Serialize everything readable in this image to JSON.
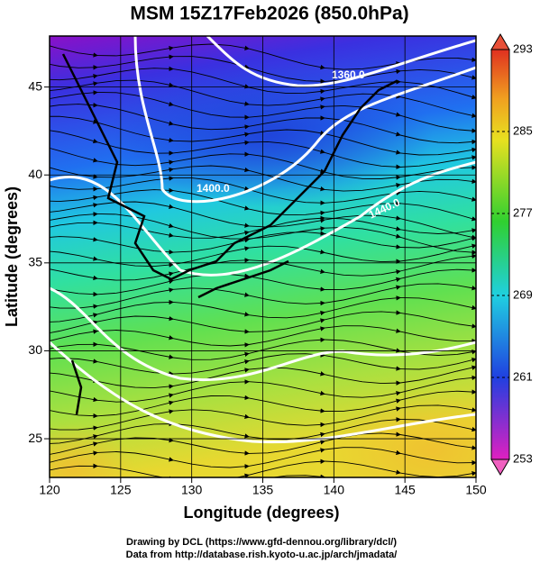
{
  "title": "MSM 15Z17Feb2026 (850.0hPa)",
  "x_axis": {
    "label": "Longitude (degrees)",
    "lim": [
      120,
      150
    ],
    "ticks": [
      120,
      125,
      130,
      135,
      140,
      145,
      150
    ]
  },
  "y_axis": {
    "label": "Latitude (degrees)",
    "lim": [
      22.8,
      47.9
    ],
    "ticks": [
      25,
      30,
      35,
      40,
      45
    ]
  },
  "colorbar": {
    "lim": [
      253,
      293
    ],
    "ticks": [
      253,
      261,
      269,
      277,
      285,
      293
    ]
  },
  "contour_labels": [
    "1360.0",
    "1400.0",
    "1440.0"
  ],
  "footer": [
    "Drawing by DCL (https://www.gfd-dennou.org/library/dcl/)",
    "Data from http://database.rish.kyoto-u.ac.jp/arch/jmadata/"
  ]
}
